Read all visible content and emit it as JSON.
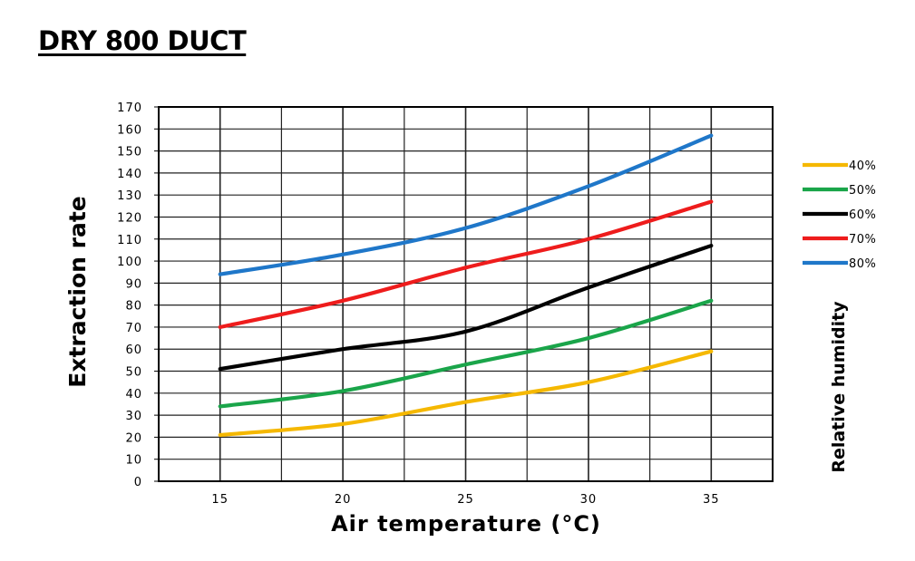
{
  "page": {
    "title": "DRY 800 DUCT"
  },
  "chart_data": {
    "type": "line",
    "title": "DRY 800 DUCT",
    "xlabel": "Air temperature (°C)",
    "ylabel": "Extraction rate",
    "legend_title": "Relative humidity",
    "legend_position": "right",
    "grid": true,
    "xlim": [
      12.5,
      37.5
    ],
    "ylim": [
      0,
      170
    ],
    "xticks": [
      15,
      20,
      25,
      30,
      35
    ],
    "yticks": [
      0,
      10,
      20,
      30,
      40,
      50,
      60,
      70,
      80,
      90,
      100,
      110,
      120,
      130,
      140,
      150,
      160,
      170
    ],
    "x": [
      15,
      20,
      25,
      30,
      35
    ],
    "series": [
      {
        "name": "40%",
        "color": "#f5b800",
        "values": [
          21,
          26,
          36,
          45,
          59
        ]
      },
      {
        "name": "50%",
        "color": "#1aa54a",
        "values": [
          34,
          41,
          53,
          65,
          82
        ]
      },
      {
        "name": "60%",
        "color": "#000000",
        "values": [
          51,
          60,
          68,
          88,
          107
        ]
      },
      {
        "name": "70%",
        "color": "#ee1c1c",
        "values": [
          70,
          82,
          97,
          110,
          127
        ]
      },
      {
        "name": "80%",
        "color": "#1f77c9",
        "values": [
          94,
          103,
          115,
          134,
          157
        ]
      }
    ]
  }
}
